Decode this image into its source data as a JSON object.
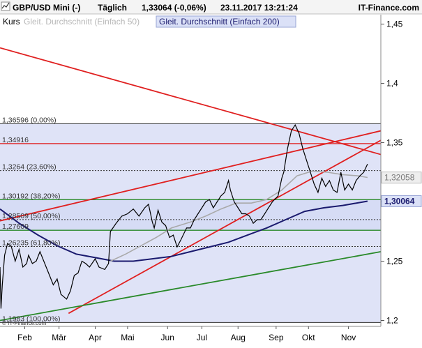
{
  "header": {
    "symbol": "GBP/USD Mini (-)",
    "interval": "Täglich",
    "last": "1,33064 (-0,06%)",
    "timestamp": "23.11.2017 13:21:24",
    "brand": "IT-Finance.com"
  },
  "legend": {
    "kurs": "Kurs",
    "sma50": "Gleit. Durchschnitt (Einfach 50)",
    "sma200": "Gleit. Durchschnitt (Einfach 200)"
  },
  "copyright": "© IT-Finance.com",
  "colors": {
    "price": "#000000",
    "sma50": "#a9a9a9",
    "sma200": "#1a1a6e",
    "trend_red": "#e02020",
    "trend_green": "#2a8a2a",
    "fib_shade": "#dfe3f7",
    "band_fill": "#d6dcf5"
  },
  "chart_data": {
    "type": "line",
    "instrument": "GBP/USD",
    "x_axis_labels": [
      "Feb",
      "Mär",
      "Apr",
      "Mai",
      "Jun",
      "Jul",
      "Aug",
      "Sep",
      "Okt",
      "Nov"
    ],
    "y_axis": {
      "ticks": [
        "1,45",
        "1,4",
        "1,35",
        "1,3",
        "1,25",
        "1,2"
      ],
      "tick_values": [
        1.45,
        1.4,
        1.35,
        1.3,
        1.25,
        1.2
      ],
      "range": [
        1.195,
        1.458
      ]
    },
    "fib_levels": [
      {
        "label": "1,36596 (0,00%)",
        "value": 1.36596
      },
      {
        "label": "1,3264 (23,60%)",
        "value": 1.3264
      },
      {
        "label": "1,30192 (38,20%)",
        "value": 1.30192
      },
      {
        "label": "1,28509 (50,00%)",
        "value": 1.28509
      },
      {
        "label": "1,26235 (61,80%)",
        "value": 1.26235
      },
      {
        "label": "1,1983 (100,00%)",
        "value": 1.1983
      }
    ],
    "horizontal_lines": [
      {
        "label": "1,34916",
        "value": 1.34916,
        "color": "red"
      },
      {
        "label": "1,27609",
        "value": 1.27609,
        "color": "green"
      }
    ],
    "price_badges": [
      {
        "label": "1,32058",
        "value": 1.32058,
        "series": "sma50"
      },
      {
        "label": "1,30064",
        "value": 1.30064,
        "series": "sma200"
      }
    ],
    "price_series": [
      [
        0,
        1.245
      ],
      [
        0.0025,
        1.21
      ],
      [
        0.006,
        1.23
      ],
      [
        0.012,
        1.255
      ],
      [
        0.02,
        1.265
      ],
      [
        0.03,
        1.262
      ],
      [
        0.04,
        1.25
      ],
      [
        0.05,
        1.26
      ],
      [
        0.06,
        1.245
      ],
      [
        0.07,
        1.248
      ],
      [
        0.075,
        1.255
      ],
      [
        0.085,
        1.248
      ],
      [
        0.095,
        1.25
      ],
      [
        0.105,
        1.258
      ],
      [
        0.115,
        1.25
      ],
      [
        0.13,
        1.238
      ],
      [
        0.14,
        1.23
      ],
      [
        0.15,
        1.235
      ],
      [
        0.16,
        1.222
      ],
      [
        0.175,
        1.218
      ],
      [
        0.185,
        1.225
      ],
      [
        0.195,
        1.238
      ],
      [
        0.205,
        1.24
      ],
      [
        0.215,
        1.25
      ],
      [
        0.225,
        1.248
      ],
      [
        0.235,
        1.245
      ],
      [
        0.25,
        1.252
      ],
      [
        0.26,
        1.245
      ],
      [
        0.275,
        1.243
      ],
      [
        0.285,
        1.248
      ],
      [
        0.29,
        1.275
      ],
      [
        0.305,
        1.282
      ],
      [
        0.32,
        1.288
      ],
      [
        0.335,
        1.29
      ],
      [
        0.35,
        1.294
      ],
      [
        0.365,
        1.288
      ],
      [
        0.38,
        1.295
      ],
      [
        0.39,
        1.298
      ],
      [
        0.4,
        1.283
      ],
      [
        0.405,
        1.278
      ],
      [
        0.415,
        1.293
      ],
      [
        0.425,
        1.283
      ],
      [
        0.435,
        1.28
      ],
      [
        0.445,
        1.27
      ],
      [
        0.455,
        1.272
      ],
      [
        0.465,
        1.262
      ],
      [
        0.475,
        1.268
      ],
      [
        0.49,
        1.278
      ],
      [
        0.5,
        1.278
      ],
      [
        0.51,
        1.285
      ],
      [
        0.52,
        1.29
      ],
      [
        0.53,
        1.295
      ],
      [
        0.54,
        1.3
      ],
      [
        0.55,
        1.302
      ],
      [
        0.56,
        1.295
      ],
      [
        0.57,
        1.3
      ],
      [
        0.58,
        1.305
      ],
      [
        0.59,
        1.308
      ],
      [
        0.6,
        1.318
      ],
      [
        0.605,
        1.31
      ],
      [
        0.615,
        1.3
      ],
      [
        0.625,
        1.295
      ],
      [
        0.635,
        1.29
      ],
      [
        0.645,
        1.29
      ],
      [
        0.655,
        1.288
      ],
      [
        0.665,
        1.282
      ],
      [
        0.675,
        1.285
      ],
      [
        0.685,
        1.285
      ],
      [
        0.695,
        1.29
      ],
      [
        0.705,
        1.295
      ],
      [
        0.715,
        1.3
      ],
      [
        0.73,
        1.305
      ],
      [
        0.74,
        1.32
      ],
      [
        0.745,
        1.325
      ],
      [
        0.755,
        1.345
      ],
      [
        0.765,
        1.36
      ],
      [
        0.775,
        1.365
      ],
      [
        0.785,
        1.358
      ],
      [
        0.795,
        1.345
      ],
      [
        0.805,
        1.335
      ],
      [
        0.815,
        1.325
      ],
      [
        0.825,
        1.315
      ],
      [
        0.835,
        1.308
      ],
      [
        0.845,
        1.32
      ],
      [
        0.855,
        1.313
      ],
      [
        0.865,
        1.318
      ],
      [
        0.875,
        1.31
      ],
      [
        0.885,
        1.308
      ],
      [
        0.895,
        1.325
      ],
      [
        0.905,
        1.31
      ],
      [
        0.915,
        1.315
      ],
      [
        0.925,
        1.31
      ],
      [
        0.935,
        1.318
      ],
      [
        0.945,
        1.322
      ],
      [
        0.955,
        1.325
      ],
      [
        0.965,
        1.332
      ]
    ],
    "sma50_series": [
      [
        0.29,
        1.25
      ],
      [
        0.33,
        1.256
      ],
      [
        0.37,
        1.263
      ],
      [
        0.41,
        1.27
      ],
      [
        0.45,
        1.278
      ],
      [
        0.5,
        1.283
      ],
      [
        0.54,
        1.288
      ],
      [
        0.58,
        1.294
      ],
      [
        0.62,
        1.299
      ],
      [
        0.66,
        1.299
      ],
      [
        0.7,
        1.302
      ],
      [
        0.74,
        1.31
      ],
      [
        0.78,
        1.322
      ],
      [
        0.82,
        1.326
      ],
      [
        0.86,
        1.325
      ],
      [
        0.9,
        1.323
      ],
      [
        0.94,
        1.322
      ],
      [
        0.965,
        1.3206
      ]
    ],
    "sma200_series": [
      [
        0.0,
        1.294
      ],
      [
        0.05,
        1.282
      ],
      [
        0.1,
        1.272
      ],
      [
        0.15,
        1.263
      ],
      [
        0.2,
        1.256
      ],
      [
        0.25,
        1.253
      ],
      [
        0.3,
        1.25
      ],
      [
        0.35,
        1.25
      ],
      [
        0.4,
        1.252
      ],
      [
        0.45,
        1.254
      ],
      [
        0.5,
        1.258
      ],
      [
        0.55,
        1.262
      ],
      [
        0.6,
        1.266
      ],
      [
        0.65,
        1.272
      ],
      [
        0.7,
        1.278
      ],
      [
        0.75,
        1.285
      ],
      [
        0.8,
        1.292
      ],
      [
        0.85,
        1.295
      ],
      [
        0.9,
        1.297
      ],
      [
        0.965,
        1.3006
      ]
    ],
    "trendlines": [
      {
        "color": "red",
        "from": [
          0.0,
          1.43
        ],
        "to": [
          1.0,
          1.34
        ]
      },
      {
        "color": "red",
        "from": [
          0.0,
          1.284
        ],
        "to": [
          1.0,
          1.36
        ]
      },
      {
        "color": "red",
        "from": [
          0.18,
          1.206
        ],
        "to": [
          1.0,
          1.352
        ]
      },
      {
        "color": "green",
        "from": [
          0.0,
          1.2
        ],
        "to": [
          1.0,
          1.258
        ]
      }
    ],
    "grid": false,
    "legend_position": "top-left"
  }
}
